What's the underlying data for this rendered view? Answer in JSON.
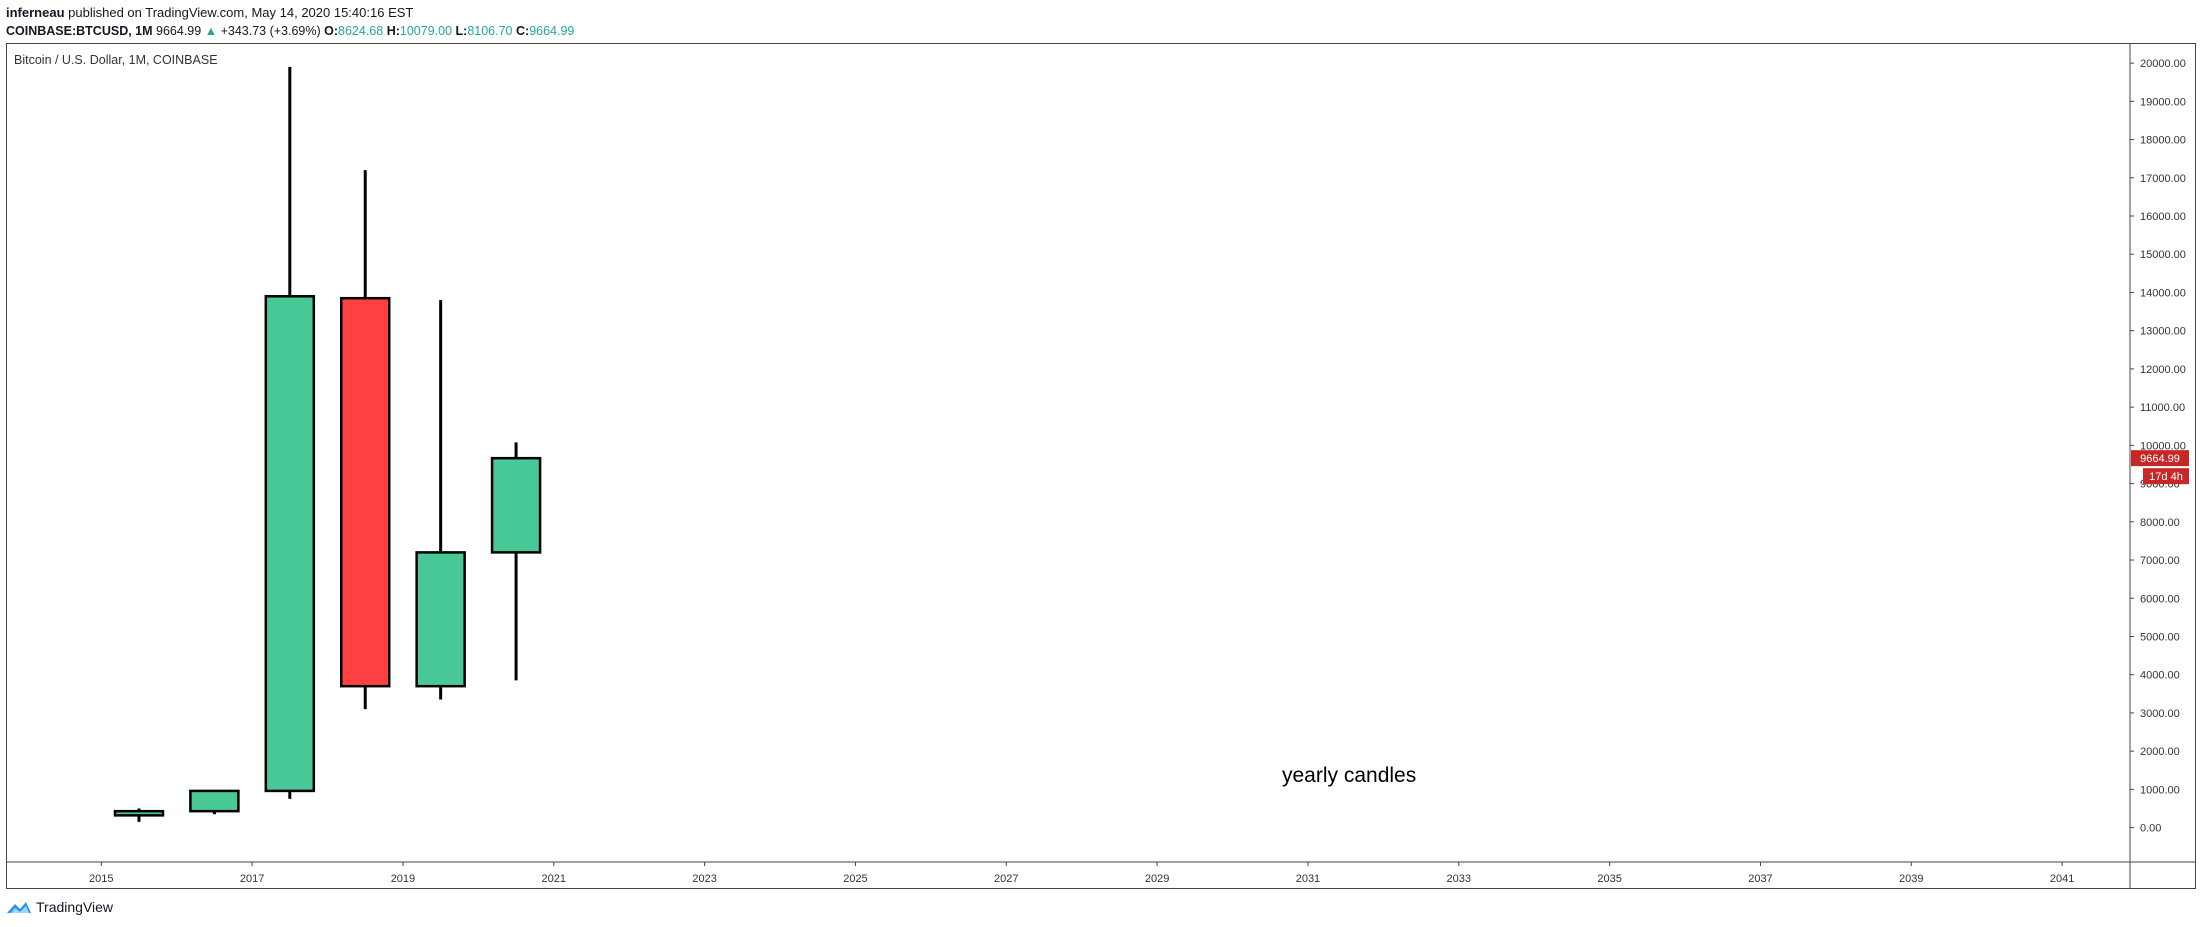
{
  "header": {
    "author": "inferneau",
    "published": "published on TradingView.com, May 14, 2020 15:40:16 EST",
    "symbol": "COINBASE:BTCUSD, 1M",
    "last": "9664.99",
    "change": "+343.73 (+3.69%)",
    "open_label": "O:",
    "open": "8624.68",
    "high_label": "H:",
    "high": "10079.00",
    "low_label": "L:",
    "low": "8106.70",
    "close_label": "C:",
    "close": "9664.99"
  },
  "chart_title": "Bitcoin / U.S. Dollar, 1M, COINBASE",
  "annotation": "yearly candles",
  "price_tag": "9664.99",
  "countdown_tag": "17d 4h",
  "footer": {
    "brand": "TradingView"
  },
  "colors": {
    "up": "#48c896",
    "down": "#ff4040",
    "border": "#000000",
    "tag": "#c62828"
  },
  "chart_data": {
    "type": "candlestick",
    "title": "Bitcoin / U.S. Dollar, 1M, COINBASE",
    "y_ticks": [
      "0.00",
      "1000.00",
      "2000.00",
      "3000.00",
      "4000.00",
      "5000.00",
      "6000.00",
      "7000.00",
      "8000.00",
      "9000.00",
      "10000.00",
      "11000.00",
      "12000.00",
      "13000.00",
      "14000.00",
      "15000.00",
      "16000.00",
      "17000.00",
      "18000.00",
      "19000.00",
      "20000.00"
    ],
    "x_ticks": [
      "2015",
      "2017",
      "2019",
      "2021",
      "2023",
      "2025",
      "2027",
      "2029",
      "2031",
      "2033",
      "2035",
      "2037",
      "2039",
      "2041"
    ],
    "ylim": [
      -900,
      20500
    ],
    "xlim": [
      2013.75,
      2041.9
    ],
    "candles": [
      {
        "year": 2015,
        "open": 320,
        "high": 500,
        "low": 150,
        "close": 430
      },
      {
        "year": 2016,
        "open": 430,
        "high": 980,
        "low": 350,
        "close": 960
      },
      {
        "year": 2017,
        "open": 960,
        "high": 19900,
        "low": 750,
        "close": 13900
      },
      {
        "year": 2018,
        "open": 13850,
        "high": 17200,
        "low": 3100,
        "close": 3700
      },
      {
        "year": 2019,
        "open": 3700,
        "high": 13800,
        "low": 3350,
        "close": 7200
      },
      {
        "year": 2020,
        "open": 7200,
        "high": 10079,
        "low": 3850,
        "close": 9664.99
      }
    ],
    "last_price": 9664.99
  }
}
